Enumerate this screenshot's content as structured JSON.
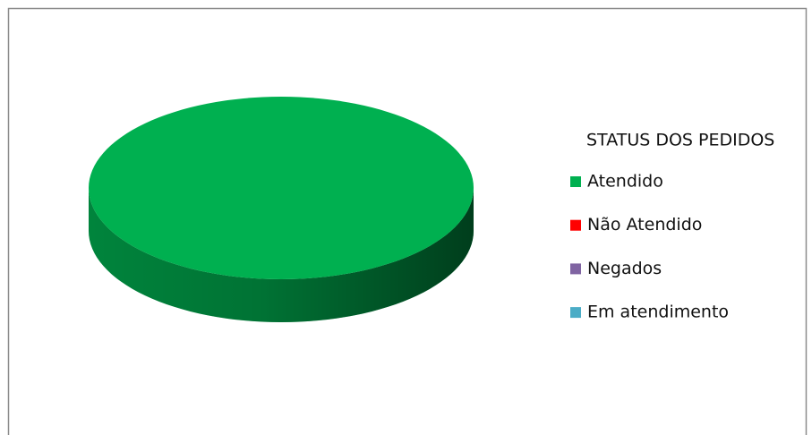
{
  "chart_data": {
    "type": "pie3d",
    "legend_title": "STATUS DOS PEDIDOS",
    "categories": [
      "Atendido",
      "Não Atendido",
      "Negados",
      "Em atendimento"
    ],
    "values": [
      100,
      0,
      0,
      0
    ],
    "colors": [
      "#00b050",
      "#ff0000",
      "#8064a2",
      "#4bacc6"
    ],
    "legend": "right"
  }
}
